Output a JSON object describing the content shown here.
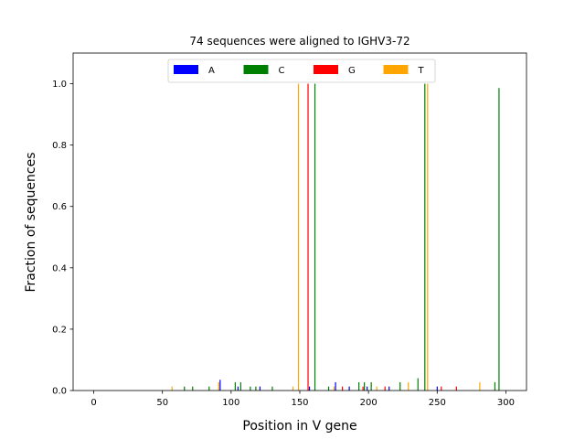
{
  "chart_data": {
    "type": "bar",
    "title": "74 sequences were aligned to IGHV3-72",
    "xlabel": "Position in V gene",
    "ylabel": "Fraction of sequences",
    "xlim": [
      -15,
      315
    ],
    "ylim": [
      0,
      1.1
    ],
    "xticks": [
      0,
      50,
      100,
      150,
      200,
      250,
      300
    ],
    "yticks": [
      0.0,
      0.2,
      0.4,
      0.6,
      0.8,
      1.0
    ],
    "xtick_labels": [
      "0",
      "50",
      "100",
      "150",
      "200",
      "250",
      "300"
    ],
    "ytick_labels": [
      "0.0",
      "0.2",
      "0.4",
      "0.6",
      "0.8",
      "1.0"
    ],
    "legend_position": "top-center",
    "grid": false,
    "series": [
      {
        "name": "A",
        "color": "#0000ff",
        "points": [
          {
            "x": 92,
            "y": 0.035
          },
          {
            "x": 105,
            "y": 0.013
          },
          {
            "x": 121,
            "y": 0.013
          },
          {
            "x": 157,
            "y": 0.013
          },
          {
            "x": 176,
            "y": 0.027
          },
          {
            "x": 186,
            "y": 0.013
          },
          {
            "x": 199,
            "y": 0.013
          },
          {
            "x": 215,
            "y": 0.013
          },
          {
            "x": 250,
            "y": 0.013
          }
        ]
      },
      {
        "name": "C",
        "color": "#008000",
        "points": [
          {
            "x": 66,
            "y": 0.013
          },
          {
            "x": 72,
            "y": 0.013
          },
          {
            "x": 84,
            "y": 0.013
          },
          {
            "x": 103,
            "y": 0.027
          },
          {
            "x": 107,
            "y": 0.027
          },
          {
            "x": 114,
            "y": 0.013
          },
          {
            "x": 118,
            "y": 0.013
          },
          {
            "x": 130,
            "y": 0.013
          },
          {
            "x": 161,
            "y": 1.0
          },
          {
            "x": 171,
            "y": 0.013
          },
          {
            "x": 193,
            "y": 0.027
          },
          {
            "x": 197,
            "y": 0.027
          },
          {
            "x": 202,
            "y": 0.027
          },
          {
            "x": 223,
            "y": 0.027
          },
          {
            "x": 236,
            "y": 0.04
          },
          {
            "x": 241,
            "y": 1.0
          },
          {
            "x": 292,
            "y": 0.027
          },
          {
            "x": 295,
            "y": 0.986
          }
        ]
      },
      {
        "name": "G",
        "color": "#ff0000",
        "points": [
          {
            "x": 156,
            "y": 1.0
          },
          {
            "x": 181,
            "y": 0.013
          },
          {
            "x": 196,
            "y": 0.013
          },
          {
            "x": 212,
            "y": 0.013
          },
          {
            "x": 253,
            "y": 0.013
          },
          {
            "x": 264,
            "y": 0.013
          }
        ]
      },
      {
        "name": "T",
        "color": "#ffa500",
        "points": [
          {
            "x": 57,
            "y": 0.013
          },
          {
            "x": 91,
            "y": 0.027
          },
          {
            "x": 145,
            "y": 0.013
          },
          {
            "x": 149,
            "y": 1.0
          },
          {
            "x": 175,
            "y": 0.013
          },
          {
            "x": 206,
            "y": 0.013
          },
          {
            "x": 229,
            "y": 0.027
          },
          {
            "x": 243,
            "y": 1.0
          },
          {
            "x": 281,
            "y": 0.027
          }
        ]
      }
    ]
  }
}
